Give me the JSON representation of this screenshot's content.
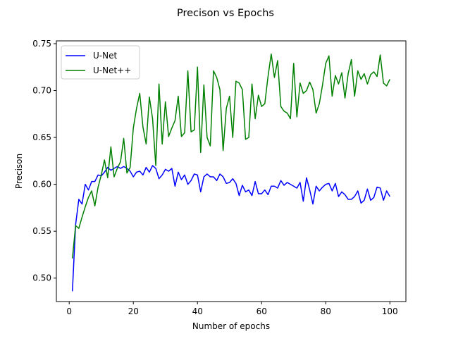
{
  "chart_data": {
    "type": "line",
    "title": "Precison vs Epochs",
    "xlabel": "Number of epochs",
    "ylabel": "Precison",
    "xlim": [
      -4,
      105
    ],
    "ylim": [
      0.475,
      0.753
    ],
    "xticks": [
      0,
      20,
      40,
      60,
      80,
      100
    ],
    "yticks": [
      0.5,
      0.55,
      0.6,
      0.65,
      0.7,
      0.75
    ],
    "ytick_labels": [
      "0.50",
      "0.55",
      "0.60",
      "0.65",
      "0.70",
      "0.75"
    ],
    "grid": false,
    "legend_position": "top-left",
    "x": [
      1,
      2,
      3,
      4,
      5,
      6,
      7,
      8,
      9,
      10,
      11,
      12,
      13,
      14,
      15,
      16,
      17,
      18,
      19,
      20,
      21,
      22,
      23,
      24,
      25,
      26,
      27,
      28,
      29,
      30,
      31,
      32,
      33,
      34,
      35,
      36,
      37,
      38,
      39,
      40,
      41,
      42,
      43,
      44,
      45,
      46,
      47,
      48,
      49,
      50,
      51,
      52,
      53,
      54,
      55,
      56,
      57,
      58,
      59,
      60,
      61,
      62,
      63,
      64,
      65,
      66,
      67,
      68,
      69,
      70,
      71,
      72,
      73,
      74,
      75,
      76,
      77,
      78,
      79,
      80,
      81,
      82,
      83,
      84,
      85,
      86,
      87,
      88,
      89,
      90,
      91,
      92,
      93,
      94,
      95,
      96,
      97,
      98,
      99,
      100
    ],
    "series": [
      {
        "name": "U-Net",
        "color": "#0000ff",
        "values": [
          0.486,
          0.557,
          0.584,
          0.579,
          0.6,
          0.594,
          0.603,
          0.603,
          0.61,
          0.609,
          0.613,
          0.618,
          0.615,
          0.617,
          0.619,
          0.617,
          0.619,
          0.617,
          0.614,
          0.608,
          0.613,
          0.614,
          0.61,
          0.618,
          0.613,
          0.62,
          0.617,
          0.606,
          0.61,
          0.616,
          0.614,
          0.617,
          0.598,
          0.613,
          0.605,
          0.61,
          0.6,
          0.604,
          0.611,
          0.61,
          0.592,
          0.608,
          0.611,
          0.608,
          0.608,
          0.604,
          0.611,
          0.608,
          0.601,
          0.602,
          0.606,
          0.601,
          0.588,
          0.599,
          0.592,
          0.594,
          0.588,
          0.603,
          0.59,
          0.59,
          0.594,
          0.589,
          0.598,
          0.598,
          0.596,
          0.604,
          0.599,
          0.602,
          0.6,
          0.598,
          0.596,
          0.602,
          0.582,
          0.607,
          0.594,
          0.579,
          0.598,
          0.593,
          0.597,
          0.6,
          0.601,
          0.593,
          0.601,
          0.587,
          0.592,
          0.589,
          0.584,
          0.584,
          0.587,
          0.593,
          0.58,
          0.583,
          0.595,
          0.583,
          0.586,
          0.597,
          0.596,
          0.583,
          0.593,
          0.587
        ]
      },
      {
        "name": "U-Net++",
        "color": "#008000",
        "values": [
          0.521,
          0.556,
          0.553,
          0.565,
          0.576,
          0.586,
          0.593,
          0.577,
          0.597,
          0.61,
          0.626,
          0.607,
          0.64,
          0.608,
          0.617,
          0.624,
          0.649,
          0.612,
          0.618,
          0.66,
          0.681,
          0.697,
          0.661,
          0.643,
          0.693,
          0.67,
          0.62,
          0.707,
          0.643,
          0.688,
          0.651,
          0.66,
          0.668,
          0.694,
          0.651,
          0.655,
          0.721,
          0.656,
          0.658,
          0.725,
          0.634,
          0.706,
          0.65,
          0.641,
          0.721,
          0.714,
          0.701,
          0.636,
          0.681,
          0.694,
          0.65,
          0.71,
          0.708,
          0.701,
          0.648,
          0.65,
          0.707,
          0.67,
          0.695,
          0.683,
          0.686,
          0.715,
          0.739,
          0.714,
          0.732,
          0.683,
          0.678,
          0.676,
          0.67,
          0.729,
          0.672,
          0.708,
          0.697,
          0.7,
          0.709,
          0.701,
          0.676,
          0.686,
          0.706,
          0.729,
          0.737,
          0.694,
          0.716,
          0.707,
          0.719,
          0.692,
          0.718,
          0.733,
          0.694,
          0.721,
          0.712,
          0.718,
          0.707,
          0.717,
          0.72,
          0.715,
          0.738,
          0.708,
          0.705,
          0.712
        ]
      }
    ]
  }
}
